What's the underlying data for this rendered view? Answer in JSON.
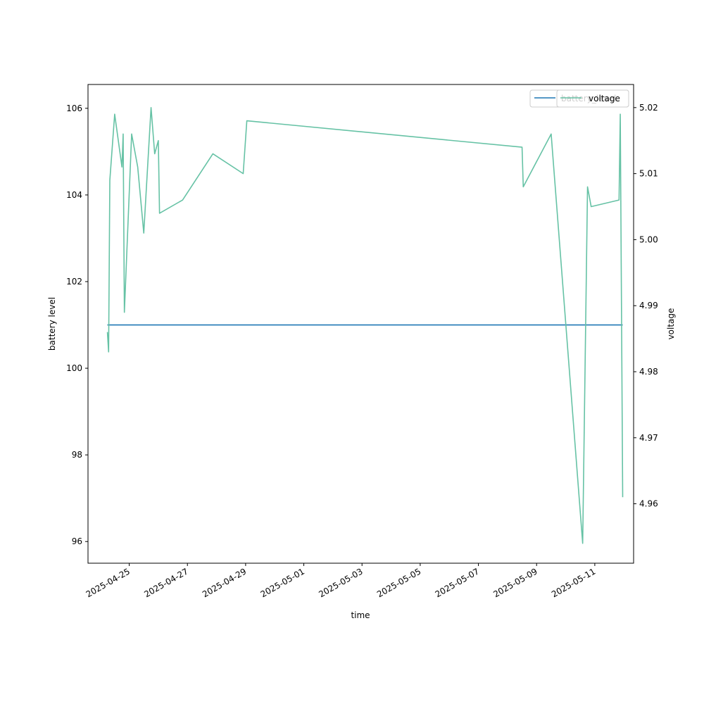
{
  "chart_data": {
    "type": "line",
    "xlabel": "time",
    "y_left_label": "battery level",
    "y_right_label": "voltage",
    "x_range": [
      "2025-04-23T14:00",
      "2025-05-12T08:00"
    ],
    "y_left_range": [
      95.5,
      106.55
    ],
    "y_right_range": [
      4.951,
      5.0235
    ],
    "x_ticks": [
      "2025-04-25",
      "2025-04-27",
      "2025-04-29",
      "2025-05-01",
      "2025-05-03",
      "2025-05-05",
      "2025-05-07",
      "2025-05-09",
      "2025-05-11"
    ],
    "y_left_ticks": [
      96,
      98,
      100,
      102,
      104,
      106
    ],
    "y_right_ticks": [
      4.96,
      4.97,
      4.98,
      4.99,
      5.0,
      5.01,
      5.02
    ],
    "grid": false,
    "legends": [
      {
        "placement": "upper-right",
        "entries": [
          "battery_level"
        ]
      },
      {
        "placement": "upper-right",
        "entries": [
          "voltage"
        ]
      }
    ],
    "series": [
      {
        "name": "battery_level",
        "axis": "left",
        "color": "#1f77b4",
        "points": [
          [
            "2025-04-24T06:00",
            101.0
          ],
          [
            "2025-05-11T23:00",
            101.0
          ]
        ]
      },
      {
        "name": "voltage",
        "axis": "right",
        "color": "#66c2a5",
        "points": [
          [
            "2025-04-24T06:00",
            4.986
          ],
          [
            "2025-04-24T07:00",
            4.983
          ],
          [
            "2025-04-24T08:00",
            5.009
          ],
          [
            "2025-04-24T12:00",
            5.019
          ],
          [
            "2025-04-24T18:00",
            5.011
          ],
          [
            "2025-04-24T19:00",
            5.016
          ],
          [
            "2025-04-24T20:00",
            4.989
          ],
          [
            "2025-04-25T02:00",
            5.016
          ],
          [
            "2025-04-25T07:00",
            5.011
          ],
          [
            "2025-04-25T12:00",
            5.001
          ],
          [
            "2025-04-25T18:00",
            5.02
          ],
          [
            "2025-04-25T21:00",
            5.013
          ],
          [
            "2025-04-26T00:00",
            5.015
          ],
          [
            "2025-04-26T01:00",
            5.004
          ],
          [
            "2025-04-26T20:00",
            5.006
          ],
          [
            "2025-04-27T21:00",
            5.013
          ],
          [
            "2025-04-28T22:00",
            5.01
          ],
          [
            "2025-04-29T01:00",
            5.018
          ],
          [
            "2025-05-08T12:00",
            5.014
          ],
          [
            "2025-05-08T13:00",
            5.008
          ],
          [
            "2025-05-09T12:00",
            5.016
          ],
          [
            "2025-05-10T14:00",
            4.954
          ],
          [
            "2025-05-10T18:00",
            5.008
          ],
          [
            "2025-05-10T21:00",
            5.005
          ],
          [
            "2025-05-11T20:00",
            5.006
          ],
          [
            "2025-05-11T21:00",
            5.019
          ],
          [
            "2025-05-11T23:00",
            4.961
          ]
        ]
      }
    ]
  }
}
